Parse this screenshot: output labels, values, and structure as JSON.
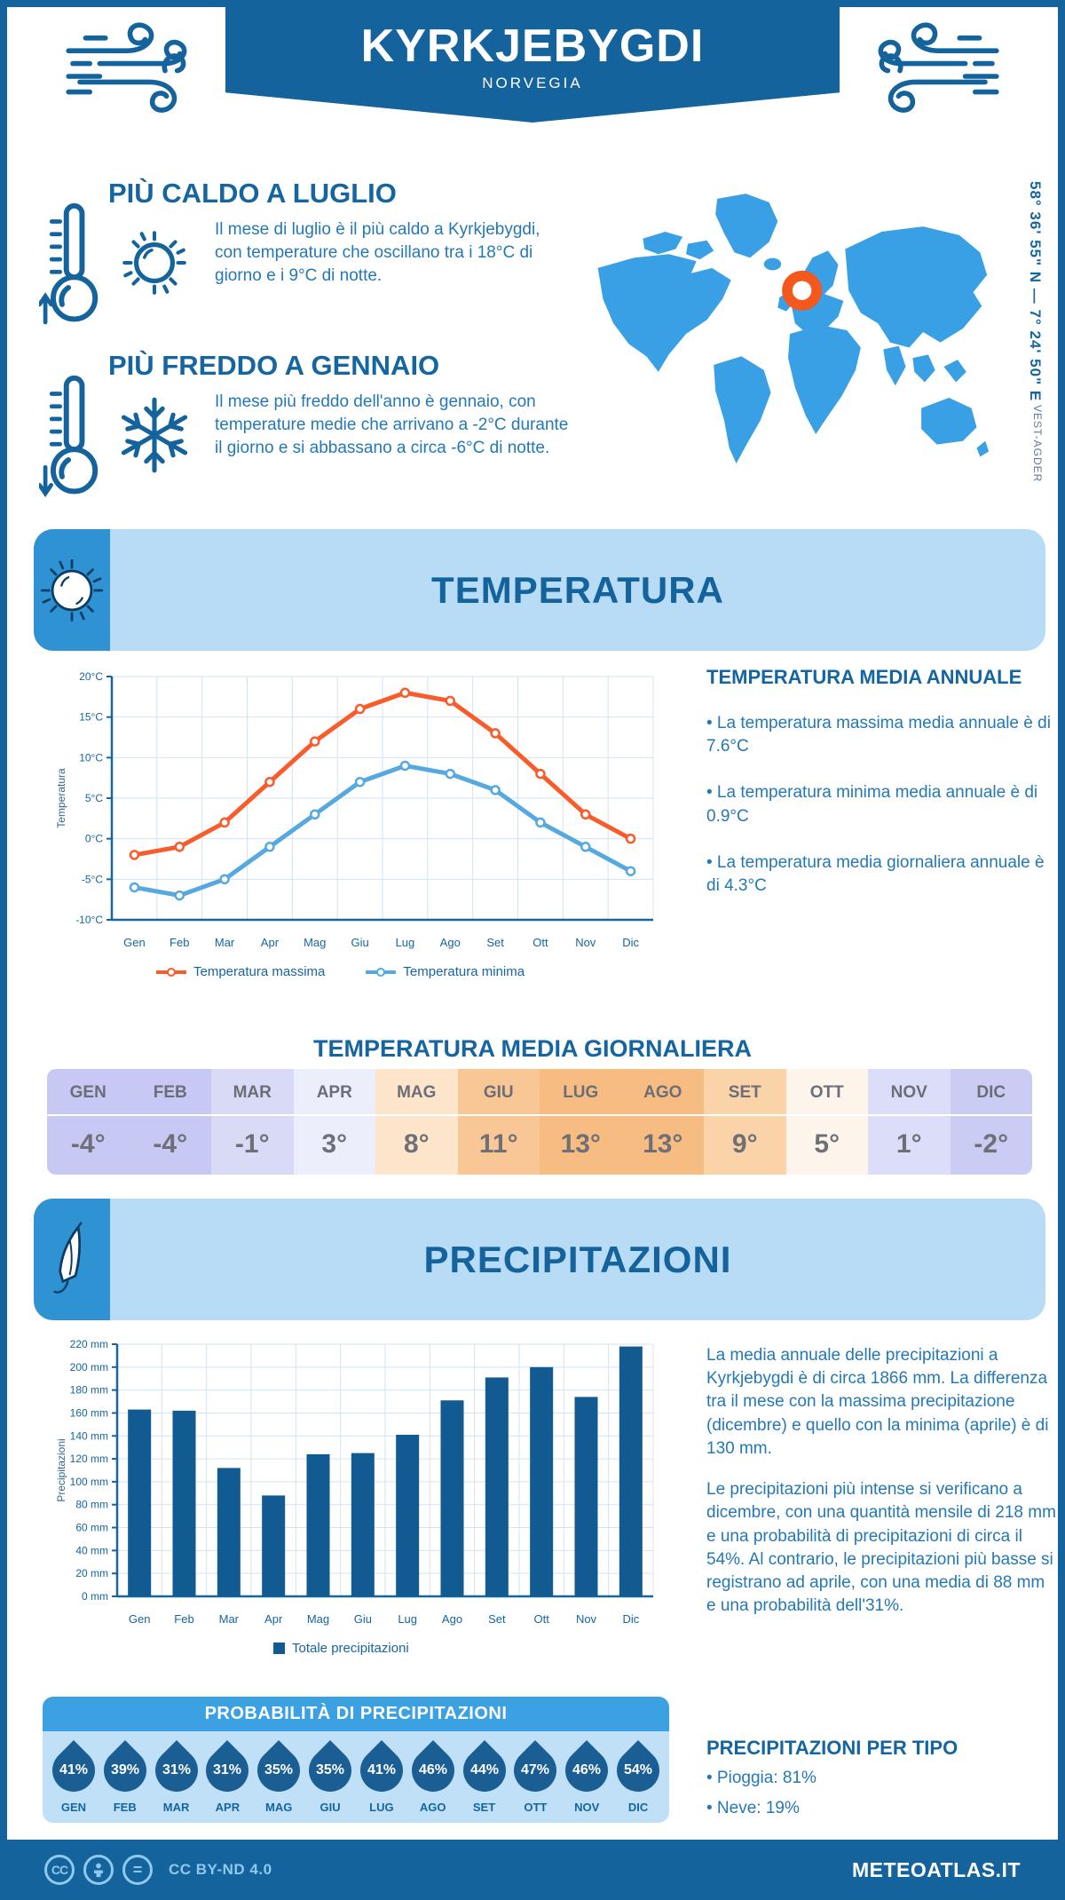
{
  "header": {
    "title": "KYRKJEBYGDI",
    "subtitle": "NORVEGIA"
  },
  "coords": {
    "position": "58° 36' 55\" N — 7° 24' 50\" E",
    "region": "VEST-AGDER"
  },
  "highlights": [
    {
      "title": "PIÙ CALDO A LUGLIO",
      "text": "Il mese di luglio è il più caldo a Kyrkjebygdi, con temperature che oscillano tra i 18°C di giorno e i 9°C di notte."
    },
    {
      "title": "PIÙ FREDDO A GENNAIO",
      "text": "Il mese più freddo dell'anno è gennaio, con temperature medie che arrivano a -2°C durante il giorno e si abbassano a circa -6°C di notte."
    }
  ],
  "sections": {
    "temperature": "TEMPERATURA",
    "precipitation": "PRECIPITAZIONI"
  },
  "annual": {
    "title": "TEMPERATURA MEDIA ANNUALE",
    "bullets": [
      "• La temperatura massima media annuale è di 7.6°C",
      "• La temperatura minima media annuale è di 0.9°C",
      "• La temperatura media giornaliera annuale è di 4.3°C"
    ]
  },
  "daily_table": {
    "title": "TEMPERATURA MEDIA GIORNALIERA",
    "months": [
      "GEN",
      "FEB",
      "MAR",
      "APR",
      "MAG",
      "GIU",
      "LUG",
      "AGO",
      "SET",
      "OTT",
      "NOV",
      "DIC"
    ],
    "values": [
      "-4°",
      "-4°",
      "-1°",
      "3°",
      "8°",
      "11°",
      "13°",
      "13°",
      "9°",
      "5°",
      "1°",
      "-2°"
    ],
    "cell_colors": [
      "#c7c8f3",
      "#c7c8f3",
      "#d9daf6",
      "#eceffb",
      "#fde5cb",
      "#f9c795",
      "#f7bc82",
      "#f7bc82",
      "#fad3a8",
      "#fdf5ec",
      "#dcddf8",
      "#cbccf4"
    ]
  },
  "precip_text": {
    "para1": "La media annuale delle precipitazioni a Kyrkjebygdi è di circa 1866 mm. La differenza tra il mese con la massima precipitazione (dicembre) e quello con la minima (aprile) è di 130 mm.",
    "para2": "Le precipitazioni più intense si verificano a dicembre, con una quantità mensile di 218 mm e una probabilità di precipitazioni di circa il 54%. Al contrario, le precipitazioni più basse si registrano ad aprile, con una media di 88 mm e una probabilità dell'31%."
  },
  "probability": {
    "title": "PROBABILITÀ DI PRECIPITAZIONI",
    "months": [
      "GEN",
      "FEB",
      "MAR",
      "APR",
      "MAG",
      "GIU",
      "LUG",
      "AGO",
      "SET",
      "OTT",
      "NOV",
      "DIC"
    ],
    "values": [
      "41%",
      "39%",
      "31%",
      "31%",
      "35%",
      "35%",
      "41%",
      "46%",
      "44%",
      "47%",
      "46%",
      "54%"
    ]
  },
  "precip_type": {
    "title": "PRECIPITAZIONI PER TIPO",
    "bullets": [
      "• Pioggia: 81%",
      "• Neve: 19%"
    ]
  },
  "footer": {
    "license": "CC BY-ND 4.0",
    "brand": "METEOATLAS.IT"
  },
  "colors": {
    "brand_blue": "#15639c",
    "heading_blue": "#1565a0",
    "text_blue": "#2478b5",
    "panel_light": "#b9dcf6",
    "map_blue": "#39a0e5",
    "marker_orange": "#f4581d",
    "grid": "#d2e3f2",
    "prob_header": "#3ba1e3",
    "prob_panel": "#bfe0f7",
    "drop_blue": "#1b5e94"
  },
  "chart_data": [
    {
      "type": "line",
      "categories": [
        "Gen",
        "Feb",
        "Mar",
        "Apr",
        "Mag",
        "Giu",
        "Lug",
        "Ago",
        "Set",
        "Ott",
        "Nov",
        "Dic"
      ],
      "ylabel": "Temperatura",
      "ylim": [
        -10,
        20
      ],
      "ytick_step": 5,
      "ytick_suffix": "°C",
      "grid": true,
      "legend_position": "bottom",
      "series": [
        {
          "name": "Temperatura massima",
          "color": "#f85c2b",
          "values": [
            -2,
            -1,
            2,
            7,
            12,
            16,
            18,
            17,
            13,
            8,
            3,
            0
          ]
        },
        {
          "name": "Temperatura minima",
          "color": "#56a9e0",
          "values": [
            -6,
            -7,
            -5,
            -1,
            3,
            7,
            9,
            8,
            6,
            2,
            -1,
            -4
          ]
        }
      ]
    },
    {
      "type": "bar",
      "categories": [
        "Gen",
        "Feb",
        "Mar",
        "Apr",
        "Mag",
        "Giu",
        "Lug",
        "Ago",
        "Set",
        "Ott",
        "Nov",
        "Dic"
      ],
      "values": [
        163,
        162,
        112,
        88,
        124,
        125,
        141,
        171,
        191,
        200,
        174,
        218
      ],
      "ylabel": "Precipitazioni",
      "ylim": [
        0,
        220
      ],
      "ytick_step": 20,
      "ytick_suffix": " mm",
      "color": "#115a92",
      "grid": true,
      "legend": "Totale precipitazioni"
    }
  ]
}
